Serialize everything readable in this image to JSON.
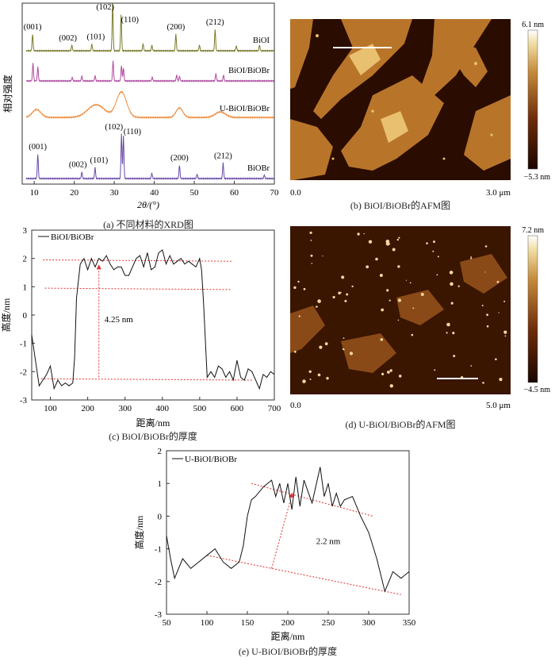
{
  "xrd": {
    "caption": "(a) 不同材料的XRD图",
    "ylabel": "相对强度",
    "xlabel": "2θ/(°)",
    "xticks": [
      "10",
      "20",
      "30",
      "40",
      "50",
      "60",
      "70"
    ],
    "series": [
      {
        "name": "BiOI",
        "color": "#7a7a2a",
        "peaks": [
          {
            "x": 9.6,
            "h": 0.35,
            "label": "(001)"
          },
          {
            "x": 19.4,
            "h": 0.12,
            "label": "(002)"
          },
          {
            "x": 24.4,
            "h": 0.14,
            "label": "(101)"
          },
          {
            "x": 29.6,
            "h": 1.0,
            "label": "(102)"
          },
          {
            "x": 31.7,
            "h": 0.75,
            "label": "(110)"
          },
          {
            "x": 37.2,
            "h": 0.15
          },
          {
            "x": 39.4,
            "h": 0.12
          },
          {
            "x": 45.4,
            "h": 0.35,
            "label": "(200)"
          },
          {
            "x": 51.3,
            "h": 0.12
          },
          {
            "x": 55.2,
            "h": 0.45,
            "label": "(212)"
          },
          {
            "x": 60.5,
            "h": 0.1
          },
          {
            "x": 66.3,
            "h": 0.12
          }
        ]
      },
      {
        "name": "BiOI/BiOBr",
        "color": "#b04aa0",
        "peaks": [
          {
            "x": 9.7,
            "h": 0.75
          },
          {
            "x": 10.9,
            "h": 0.6
          },
          {
            "x": 19.5,
            "h": 0.15
          },
          {
            "x": 21.9,
            "h": 0.2
          },
          {
            "x": 25.2,
            "h": 0.22
          },
          {
            "x": 29.7,
            "h": 0.85
          },
          {
            "x": 31.8,
            "h": 0.65
          },
          {
            "x": 32.3,
            "h": 0.55
          },
          {
            "x": 39.5,
            "h": 0.15
          },
          {
            "x": 45.6,
            "h": 0.25
          },
          {
            "x": 46.3,
            "h": 0.2
          },
          {
            "x": 55.4,
            "h": 0.3
          },
          {
            "x": 57.3,
            "h": 0.25
          }
        ]
      },
      {
        "name": "U-BiOI/BiOBr",
        "color": "#ef8a3a",
        "peaks": []
      },
      {
        "name": "BiOBr",
        "color": "#6a4aa8",
        "peaks": [
          {
            "x": 10.9,
            "h": 0.55,
            "label": "(001)"
          },
          {
            "x": 21.9,
            "h": 0.15,
            "label": "(002)"
          },
          {
            "x": 25.2,
            "h": 0.25,
            "label": "(101)"
          },
          {
            "x": 31.8,
            "h": 1.0,
            "label": "(102)"
          },
          {
            "x": 32.3,
            "h": 0.95,
            "label": "(110)"
          },
          {
            "x": 39.4,
            "h": 0.12
          },
          {
            "x": 46.3,
            "h": 0.3,
            "label": "(200)"
          },
          {
            "x": 50.7,
            "h": 0.1
          },
          {
            "x": 57.2,
            "h": 0.35,
            "label": "(212)"
          },
          {
            "x": 67.5,
            "h": 0.08
          }
        ]
      }
    ]
  },
  "afm_b": {
    "caption": "(b) BiOI/BiOBr的AFM图",
    "scale_max": "6.1 nm",
    "scale_min": "−5.3 nm",
    "x_start": "0.0",
    "x_end": "3.0 μm"
  },
  "afm_d": {
    "caption": "(d) U-BiOI/BiOBr的AFM图",
    "scale_max": "7.2 nm",
    "scale_min": "−4.5 nm",
    "x_start": "0.0",
    "x_end": "5.0 μm"
  },
  "chart_data": [
    {
      "type": "line",
      "caption": "(c) BiOI/BiOBr的厚度",
      "series_name": "BiOI/BiOBr",
      "xlabel": "距离/nm",
      "ylabel": "高度/nm",
      "xlim": [
        50,
        700
      ],
      "ylim": [
        -3,
        3
      ],
      "xticks": [
        100,
        200,
        300,
        400,
        500,
        600,
        700
      ],
      "yticks": [
        -3,
        -2,
        -1,
        0,
        1,
        2,
        3
      ],
      "annotation": "4.25 nm",
      "x": [
        50,
        60,
        70,
        80,
        90,
        100,
        110,
        120,
        130,
        140,
        150,
        160,
        165,
        170,
        180,
        190,
        200,
        210,
        220,
        230,
        240,
        250,
        260,
        270,
        280,
        290,
        300,
        310,
        320,
        330,
        340,
        350,
        360,
        370,
        380,
        390,
        400,
        410,
        420,
        430,
        440,
        450,
        460,
        470,
        480,
        490,
        500,
        505,
        510,
        520,
        530,
        540,
        550,
        560,
        570,
        580,
        590,
        600,
        610,
        620,
        630,
        640,
        650,
        660,
        670,
        680,
        690,
        700
      ],
      "y": [
        -0.7,
        -1.6,
        -2.5,
        -2.3,
        -2.1,
        -1.8,
        -2.6,
        -2.3,
        -2.5,
        -2.4,
        -2.5,
        -2.4,
        -1.5,
        0.6,
        1.8,
        2.0,
        1.6,
        2.0,
        1.7,
        2.0,
        1.9,
        2.1,
        1.8,
        1.6,
        1.7,
        1.7,
        1.4,
        1.4,
        1.7,
        2.0,
        2.1,
        1.7,
        2.2,
        1.6,
        1.7,
        2.2,
        2.3,
        1.8,
        2.1,
        1.8,
        1.9,
        2.0,
        1.8,
        1.9,
        1.8,
        1.7,
        2.0,
        1.6,
        0.5,
        -2.2,
        -2.0,
        -2.2,
        -1.8,
        -1.9,
        -2.2,
        -2.0,
        -2.3,
        -1.6,
        -2.2,
        -2.3,
        -1.9,
        -2.0,
        -2.3,
        -2.6,
        -2.1,
        -2.2,
        -2.0,
        -2.1
      ]
    },
    {
      "type": "line",
      "caption": "(e) U-BiOI/BiOBr的厚度",
      "series_name": "U-BiOI/BiOBr",
      "xlabel": "距离/nm",
      "ylabel": "高度/nm",
      "xlim": [
        50,
        350
      ],
      "ylim": [
        -3,
        2
      ],
      "xticks": [
        50,
        100,
        150,
        200,
        250,
        300,
        350
      ],
      "yticks": [
        -3,
        -2,
        -1,
        0,
        1,
        2
      ],
      "annotation": "2.2 nm",
      "x": [
        50,
        55,
        60,
        70,
        80,
        90,
        100,
        110,
        120,
        130,
        140,
        145,
        150,
        155,
        160,
        170,
        180,
        185,
        190,
        195,
        200,
        205,
        210,
        215,
        220,
        230,
        240,
        245,
        250,
        255,
        260,
        265,
        270,
        280,
        290,
        300,
        310,
        320,
        330,
        340,
        350
      ],
      "y": [
        -0.6,
        -1.3,
        -1.9,
        -1.3,
        -1.6,
        -1.4,
        -1.2,
        -1.0,
        -1.4,
        -1.6,
        -1.4,
        -0.9,
        0.0,
        0.5,
        0.6,
        0.9,
        1.1,
        0.6,
        1.0,
        0.4,
        1.0,
        0.2,
        1.2,
        0.3,
        1.1,
        0.4,
        1.5,
        0.6,
        1.0,
        0.3,
        0.7,
        0.3,
        0.5,
        0.6,
        0.0,
        -0.5,
        -1.3,
        -2.3,
        -1.7,
        -1.9,
        -1.7
      ]
    }
  ]
}
